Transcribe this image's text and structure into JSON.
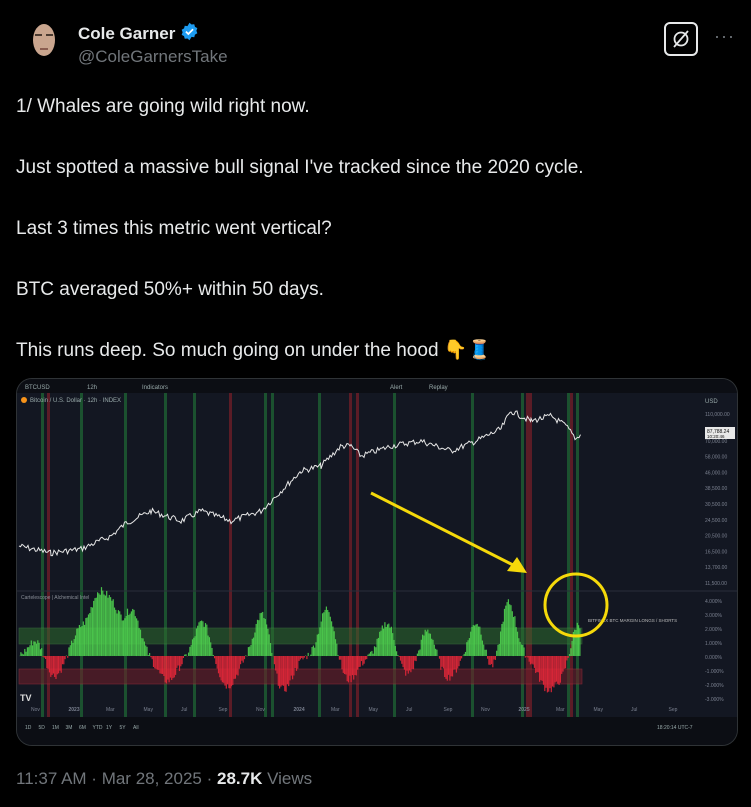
{
  "author": {
    "name": "Cole Garner",
    "handle": "@ColeGarnersTake",
    "verified": true,
    "verified_color": "#1d9bf0"
  },
  "tweet": {
    "paragraphs": [
      "1/  Whales are going wild right now.",
      "Just spotted a massive bull signal I've tracked since the 2020 cycle.",
      "Last 3 times this metric went vertical?",
      "BTC averaged 50%+ within 50 days.",
      "This runs deep. So much going on under the hood 👇🧵"
    ]
  },
  "media": {
    "toolbar": {
      "symbol": "BTCUSD",
      "interval": "12h",
      "indicators": "Indicators",
      "alert": "Alert",
      "replay": "Replay"
    },
    "chart_title": "Bitcoin / U.S. Dollar · 12h · INDEX",
    "currency": "USD",
    "price_axis": [
      "110,000.00",
      "70,000.00",
      "58,000.00",
      "46,000.00",
      "38,500.00",
      "30,500.00",
      "24,500.00",
      "20,500.00",
      "16,500.00",
      "13,700.00",
      "11,500.00"
    ],
    "price_tag": "87,788.24",
    "price_tag_time": "10:20:46",
    "indicator_title": "Cartelescope | Alchemical Intel",
    "indicator_label": "BITFINEX BTC MARGIN LONGS / SHORTS",
    "indicator_axis": [
      "4.000%",
      "3.000%",
      "2.000%",
      "1.000%",
      "0.000%",
      "-1.000%",
      "-2.000%",
      "-3.000%"
    ],
    "time_axis": [
      "Nov",
      "2023",
      "Mar",
      "May",
      "Jul",
      "Sep",
      "Nov",
      "2024",
      "Mar",
      "May",
      "Jul",
      "Sep",
      "Nov",
      "2025",
      "Mar",
      "May",
      "Jul",
      "Sep"
    ],
    "ranges": [
      "1D",
      "5D",
      "1M",
      "3M",
      "6M",
      "YTD",
      "1Y",
      "5Y",
      "All"
    ],
    "clock": "18:20:14 UTC-7",
    "annotation_color": "#f5d90a"
  },
  "footer": {
    "time": "11:37 AM",
    "date": "Mar 28, 2025",
    "views_count": "28.7K",
    "views_label": "Views"
  }
}
